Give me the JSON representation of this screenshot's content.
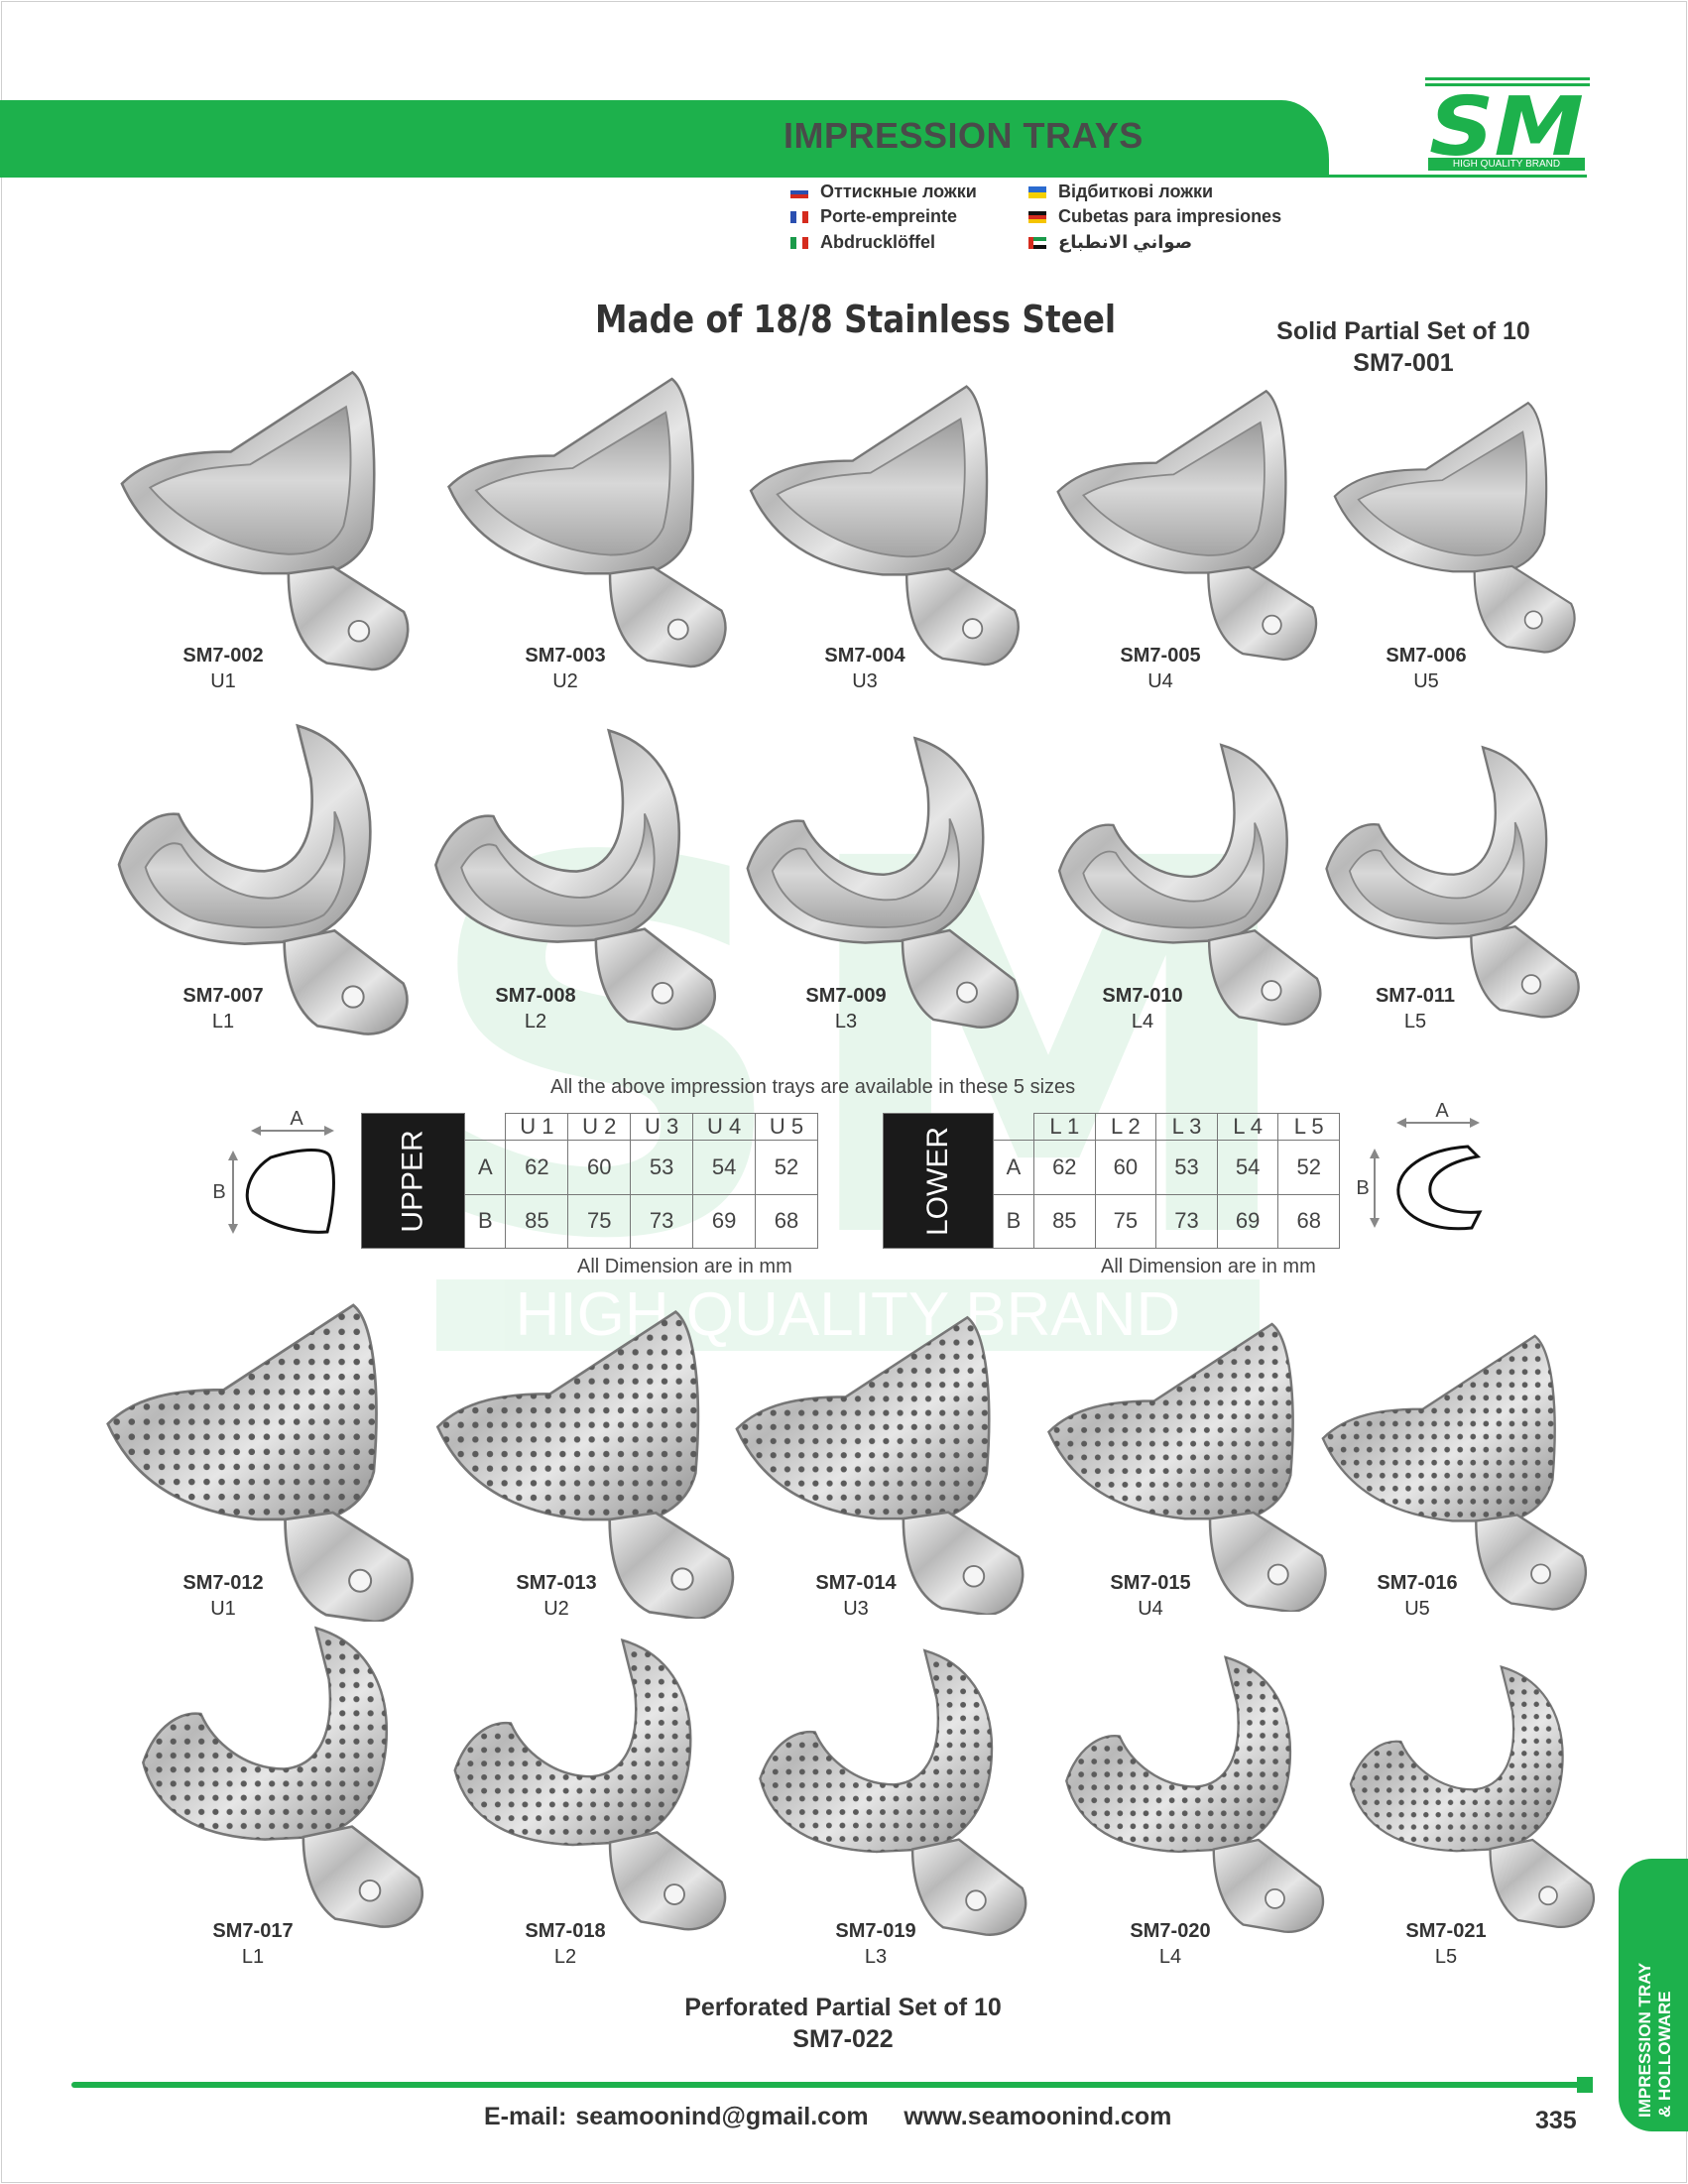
{
  "header": {
    "title": "IMPRESSION TRAYS"
  },
  "logo": {
    "text": "HIGH QUALITY BRAND",
    "brand_color": "#1db14c"
  },
  "languages": [
    {
      "flag": "ru",
      "label": "Оттискные ложки"
    },
    {
      "flag": "fr",
      "label": "Porte-empreinte"
    },
    {
      "flag": "it",
      "label": "Abdrucklöffel"
    },
    {
      "flag": "ua",
      "label": "Відбиткові ложки"
    },
    {
      "flag": "es",
      "label": "Cubetas para impresiones"
    },
    {
      "flag": "ae",
      "label": "صواني الانطباع"
    }
  ],
  "material": "Made of 18/8 Stainless Steel",
  "solid_set": {
    "label": "Solid Partial Set of 10",
    "code": "SM7-001"
  },
  "solid_upper": [
    {
      "code": "SM7-002",
      "size": "U1"
    },
    {
      "code": "SM7-003",
      "size": "U2"
    },
    {
      "code": "SM7-004",
      "size": "U3"
    },
    {
      "code": "SM7-005",
      "size": "U4"
    },
    {
      "code": "SM7-006",
      "size": "U5"
    }
  ],
  "solid_lower": [
    {
      "code": "SM7-007",
      "size": "L1"
    },
    {
      "code": "SM7-008",
      "size": "L2"
    },
    {
      "code": "SM7-009",
      "size": "L3"
    },
    {
      "code": "SM7-010",
      "size": "L4"
    },
    {
      "code": "SM7-011",
      "size": "L5"
    }
  ],
  "availability_note": "All the above impression trays are available in these 5 sizes",
  "upper_table": {
    "label": "UPPER",
    "columns": [
      "U 1",
      "U 2",
      "U 3",
      "U 4",
      "U 5"
    ],
    "rows": [
      {
        "name": "A",
        "values": [
          "62",
          "60",
          "53",
          "54",
          "52"
        ]
      },
      {
        "name": "B",
        "values": [
          "85",
          "75",
          "73",
          "69",
          "68"
        ]
      }
    ],
    "note": "All Dimension are in mm"
  },
  "lower_table": {
    "label": "LOWER",
    "columns": [
      "L 1",
      "L 2",
      "L 3",
      "L 4",
      "L 5"
    ],
    "rows": [
      {
        "name": "A",
        "values": [
          "62",
          "60",
          "53",
          "54",
          "52"
        ]
      },
      {
        "name": "B",
        "values": [
          "85",
          "75",
          "73",
          "69",
          "68"
        ]
      }
    ],
    "note": "All Dimension are in mm"
  },
  "diagram_labels": {
    "a": "A",
    "b": "B"
  },
  "watermark": {
    "letters": "SM",
    "text": "HIGH QUALITY BRAND"
  },
  "perforated_upper": [
    {
      "code": "SM7-012",
      "size": "U1"
    },
    {
      "code": "SM7-013",
      "size": "U2"
    },
    {
      "code": "SM7-014",
      "size": "U3"
    },
    {
      "code": "SM7-015",
      "size": "U4"
    },
    {
      "code": "SM7-016",
      "size": "U5"
    }
  ],
  "perforated_lower": [
    {
      "code": "SM7-017",
      "size": "L1"
    },
    {
      "code": "SM7-018",
      "size": "L2"
    },
    {
      "code": "SM7-019",
      "size": "L3"
    },
    {
      "code": "SM7-020",
      "size": "L4"
    },
    {
      "code": "SM7-021",
      "size": "L5"
    }
  ],
  "perforated_set": {
    "label": "Perforated Partial Set of 10",
    "code": "SM7-022"
  },
  "side_tab": {
    "line1": "IMPRESSION TRAY",
    "line2": "& HOLLOWARE"
  },
  "footer": {
    "email_label": "E-mail:",
    "email": "seamoonind@gmail.com",
    "website": "www.seamoonind.com",
    "page_number": "335"
  }
}
